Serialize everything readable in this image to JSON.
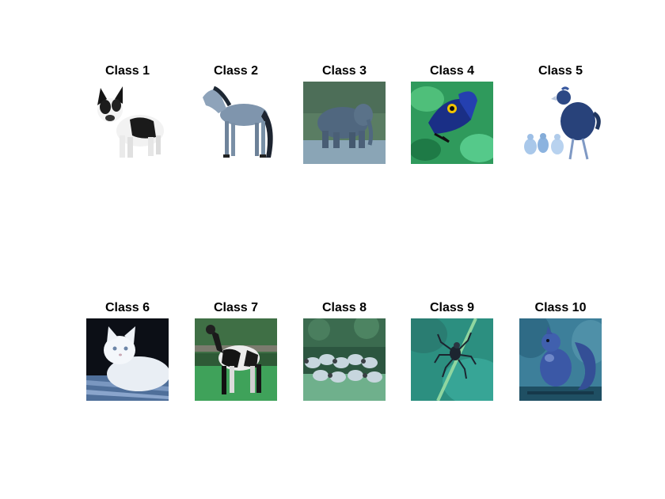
{
  "figure": {
    "panels": [
      {
        "title": "Class 1",
        "content": "dog-image"
      },
      {
        "title": "Class 2",
        "content": "horse-image"
      },
      {
        "title": "Class 3",
        "content": "elephant-image"
      },
      {
        "title": "Class 4",
        "content": "butterfly-image"
      },
      {
        "title": "Class 5",
        "content": "chicken-image"
      },
      {
        "title": "Class 6",
        "content": "cat-image"
      },
      {
        "title": "Class 7",
        "content": "cow-image"
      },
      {
        "title": "Class 8",
        "content": "sheep-image"
      },
      {
        "title": "Class 9",
        "content": "spider-image"
      },
      {
        "title": "Class 10",
        "content": "squirrel-image"
      }
    ]
  }
}
